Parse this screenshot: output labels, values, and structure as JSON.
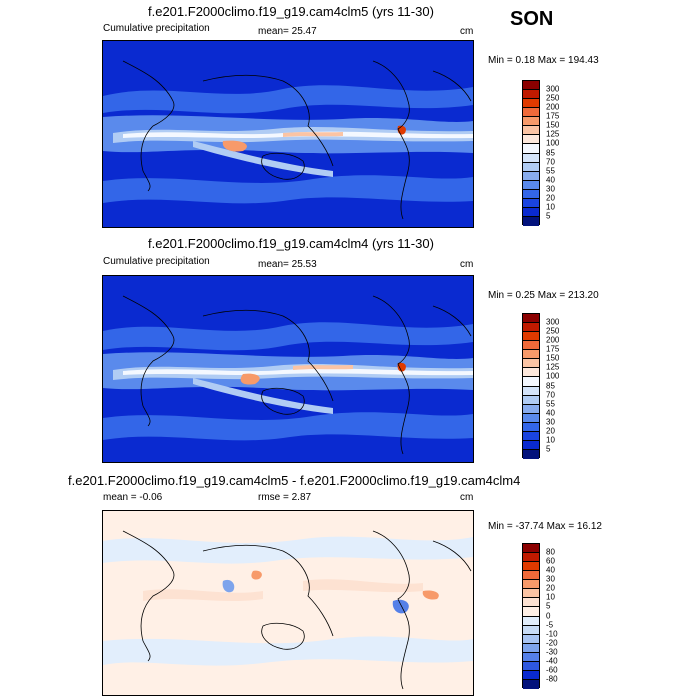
{
  "season": "SON",
  "units": "cm",
  "panels": [
    {
      "title": "f.e201.F2000climo.f19_g19.cam4clm5 (yrs 11-30)",
      "left_label": "Cumulative precipitation",
      "mid_label": "mean=  25.47",
      "minmax": "Min =   0.18 Max = 194.43",
      "kind": "precip"
    },
    {
      "title": "f.e201.F2000climo.f19_g19.cam4clm4 (yrs 11-30)",
      "left_label": "Cumulative precipitation",
      "mid_label": "mean=  25.53",
      "minmax": "Min =   0.25 Max = 213.20",
      "kind": "precip"
    },
    {
      "title": "f.e201.F2000climo.f19_g19.cam4clm5 - f.e201.F2000climo.f19_g19.cam4clm4",
      "left_label": "mean =  -0.06",
      "mid_label": "rmse =   2.87",
      "minmax": "Min = -37.74 Max =  16.12",
      "kind": "diff"
    }
  ],
  "colorbars": {
    "precip": {
      "labels": [
        "300",
        "250",
        "200",
        "175",
        "150",
        "125",
        "100",
        "85",
        "70",
        "55",
        "40",
        "30",
        "20",
        "10",
        "5"
      ],
      "colors": [
        "#8b0000",
        "#c01a00",
        "#e03a00",
        "#f06a3a",
        "#f79a6a",
        "#fbc4a4",
        "#fde8dc",
        "#f4f8ff",
        "#d4e4fa",
        "#b0ccf4",
        "#88acee",
        "#5a8aec",
        "#3366e8",
        "#1a44e0",
        "#0a2ad0",
        "#02127c"
      ]
    },
    "diff": {
      "labels": [
        "80",
        "60",
        "40",
        "30",
        "20",
        "10",
        "5",
        "0",
        "-5",
        "-10",
        "-20",
        "-30",
        "-40",
        "-60",
        "-80"
      ],
      "colors": [
        "#8b0000",
        "#c01a00",
        "#e03a00",
        "#f06a3a",
        "#f79a6a",
        "#fbc4a4",
        "#fde2d2",
        "#fff0e6",
        "#e2eefc",
        "#c8dcf6",
        "#a8c4f2",
        "#7ea4ec",
        "#5580e8",
        "#2e58e0",
        "#0a2ad0",
        "#02127c"
      ]
    }
  }
}
